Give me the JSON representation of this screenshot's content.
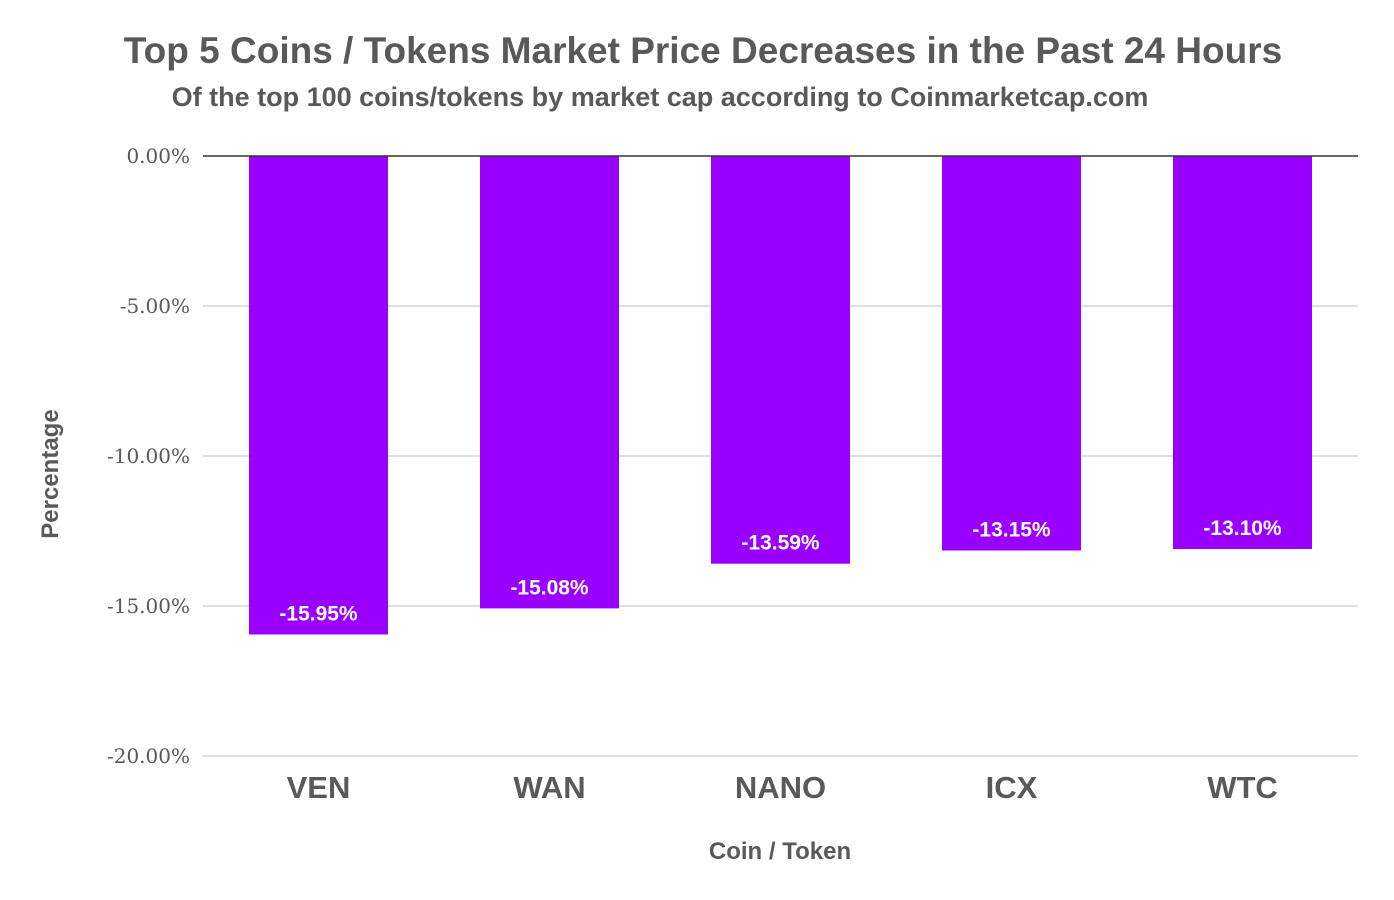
{
  "chart_data": {
    "type": "bar",
    "title": "Top 5 Coins / Tokens Market Price Decreases in the Past 24 Hours",
    "subtitle": "Of the top 100 coins/tokens by market cap according to Coinmarketcap.com",
    "xlabel": "Coin / Token",
    "ylabel": "Percentage",
    "categories": [
      "VEN",
      "WAN",
      "NANO",
      "ICX",
      "WTC"
    ],
    "values": [
      -15.95,
      -15.08,
      -13.59,
      -13.15,
      -13.1
    ],
    "data_labels": [
      "-15.95%",
      "-15.08%",
      "-13.59%",
      "-13.15%",
      "-13.10%"
    ],
    "ylim": [
      -20,
      0
    ],
    "yticks": [
      0,
      -5,
      -10,
      -15,
      -20
    ],
    "ytick_labels": [
      "0.00%",
      "-5.00%",
      "-10.00%",
      "-15.00%",
      "-20.00%"
    ],
    "grid": true,
    "bar_color": "#9900ff",
    "grid_color": "#cccccc",
    "zero_line_color": "#333333",
    "text_color": "#595959"
  }
}
